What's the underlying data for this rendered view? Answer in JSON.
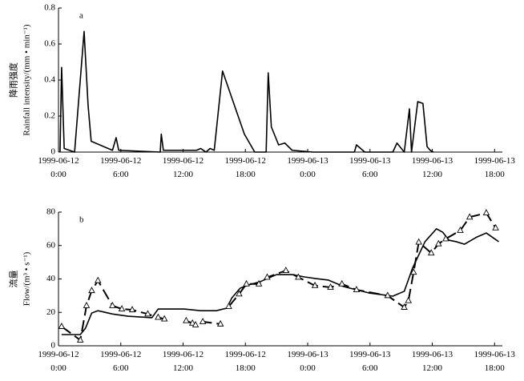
{
  "chart_data": [
    {
      "type": "line",
      "panel_label": "a",
      "ylabel": [
        "降雨强度",
        "Rainfall intensity/(mm • min⁻¹)"
      ],
      "xlim": [
        "1999-06-12 00:00",
        "1999-06-13 18:45"
      ],
      "xticks": [
        {
          "value": "1999-06-12 00:00",
          "label": [
            "1999-06-12",
            "0:00"
          ]
        },
        {
          "value": "1999-06-12 06:00",
          "label": [
            "1999-06-12",
            "6:00"
          ]
        },
        {
          "value": "1999-06-12 12:00",
          "label": [
            "1999-06-12",
            "12:00"
          ]
        },
        {
          "value": "1999-06-12 18:00",
          "label": [
            "1999-06-12",
            "18:00"
          ]
        },
        {
          "value": "1999-06-13 00:00",
          "label": [
            "1999-06-13",
            "0:00"
          ]
        },
        {
          "value": "1999-06-13 06:00",
          "label": [
            "1999-06-13",
            "6:00"
          ]
        },
        {
          "value": "1999-06-13 12:00",
          "label": [
            "1999-06-13",
            "12:00"
          ]
        },
        {
          "value": "1999-06-13 18:00",
          "label": [
            "1999-06-13",
            "18:00"
          ]
        }
      ],
      "ylim": [
        0,
        0.8
      ],
      "yticks": [
        0,
        0.2,
        0.4,
        0.6,
        0.8
      ],
      "series": [
        {
          "color": "#000000",
          "dash": false,
          "marker": null,
          "x": [
            "1999-06-12 00:09",
            "1999-06-12 00:18",
            "1999-06-12 00:33",
            "1999-06-12 01:33",
            "1999-06-12 02:28",
            "1999-06-12 02:51",
            "1999-06-12 03:09",
            "1999-06-12 05:12",
            "1999-06-12 05:33",
            "1999-06-12 05:48",
            "1999-06-12 09:48",
            "1999-06-12 09:54",
            "1999-06-12 10:06",
            "1999-06-12 13:18",
            "1999-06-12 13:42",
            "1999-06-12 14:12",
            "1999-06-12 14:36",
            "1999-06-12 15:00",
            "1999-06-12 15:48",
            "1999-06-12 17:54",
            "1999-06-12 18:54",
            "1999-06-12 20:00",
            "1999-06-12 20:12",
            "1999-06-12 20:30",
            "1999-06-12 21:12",
            "1999-06-12 21:48",
            "1999-06-12 22:30",
            "1999-06-13 00:30",
            "1999-06-13 04:30",
            "1999-06-13 04:42",
            "1999-06-13 05:30",
            "1999-06-13 08:12",
            "1999-06-13 08:36",
            "1999-06-13 09:18",
            "1999-06-13 09:48",
            "1999-06-13 10:00",
            "1999-06-13 10:36",
            "1999-06-13 11:06",
            "1999-06-13 11:30",
            "1999-06-13 11:48",
            "1999-06-13 12:06"
          ],
          "values": [
            0,
            0.47,
            0.02,
            0,
            0.67,
            0.26,
            0.06,
            0.01,
            0.08,
            0.01,
            0,
            0.1,
            0.01,
            0.01,
            0.02,
            0,
            0.02,
            0.01,
            0.45,
            0.1,
            0,
            0,
            0.44,
            0.14,
            0.04,
            0.05,
            0.01,
            0,
            0,
            0.04,
            0,
            0,
            0.05,
            0,
            0.24,
            0,
            0.28,
            0.27,
            0.03,
            0.01,
            0
          ]
        }
      ]
    },
    {
      "type": "line",
      "panel_label": "b",
      "ylabel": [
        "流量",
        "Flow/(m³ • s⁻¹)"
      ],
      "xlim": [
        "1999-06-12 00:00",
        "1999-06-13 18:45"
      ],
      "xticks": [
        {
          "value": "1999-06-12 00:00",
          "label": [
            "1999-06-12",
            "0:00"
          ]
        },
        {
          "value": "1999-06-12 06:00",
          "label": [
            "1999-06-12",
            "6:00"
          ]
        },
        {
          "value": "1999-06-12 12:00",
          "label": [
            "1999-06-12",
            "12:00"
          ]
        },
        {
          "value": "1999-06-12 18:00",
          "label": [
            "1999-06-12",
            "18:00"
          ]
        },
        {
          "value": "1999-06-13 00:00",
          "label": [
            "1999-06-13",
            "0:00"
          ]
        },
        {
          "value": "1999-06-13 06:00",
          "label": [
            "1999-06-13",
            "6:00"
          ]
        },
        {
          "value": "1999-06-13 12:00",
          "label": [
            "1999-06-13",
            "12:00"
          ]
        },
        {
          "value": "1999-06-13 18:00",
          "label": [
            "1999-06-13",
            "18:00"
          ]
        }
      ],
      "ylim": [
        0,
        80
      ],
      "yticks": [
        0,
        20,
        40,
        60,
        80
      ],
      "series": [
        {
          "color": "#000000",
          "dash": false,
          "marker": null,
          "x": [
            "1999-06-12 00:18",
            "1999-06-12 02:06",
            "1999-06-12 02:36",
            "1999-06-12 03:12",
            "1999-06-12 03:48",
            "1999-06-12 05:12",
            "1999-06-12 06:42",
            "1999-06-12 09:00",
            "1999-06-12 09:36",
            "1999-06-12 12:06",
            "1999-06-12 13:42",
            "1999-06-12 15:12",
            "1999-06-12 16:12",
            "1999-06-12 16:42",
            "1999-06-12 17:30",
            "1999-06-12 18:18",
            "1999-06-12 19:24",
            "1999-06-12 21:00",
            "1999-06-12 22:30",
            "1999-06-12 23:42",
            "1999-06-13 00:48",
            "1999-06-13 02:00",
            "1999-06-13 03:30",
            "1999-06-13 05:54",
            "1999-06-13 08:12",
            "1999-06-13 09:18",
            "1999-06-13 10:06",
            "1999-06-13 11:18",
            "1999-06-13 12:24",
            "1999-06-13 13:00",
            "1999-06-13 13:36",
            "1999-06-13 14:18",
            "1999-06-13 15:06",
            "1999-06-13 16:18",
            "1999-06-13 17:12",
            "1999-06-13 18:24"
          ],
          "values": [
            6.7,
            6.7,
            10.5,
            19.6,
            21,
            19,
            17.7,
            16.8,
            22,
            22,
            21,
            21,
            22.5,
            28.7,
            34.5,
            36.4,
            38.3,
            42.6,
            42.6,
            41.2,
            40.2,
            39.3,
            35.4,
            31.6,
            29.7,
            32.6,
            46.5,
            62.3,
            70,
            68,
            63.2,
            62.3,
            60.8,
            65.1,
            67.5,
            62.3
          ]
        },
        {
          "color": "#000000",
          "dash": true,
          "marker": "triangle",
          "x": [
            "1999-06-12 00:18",
            "1999-06-12 02:06",
            "1999-06-12 02:42",
            "1999-06-12 03:12",
            "1999-06-12 03:48",
            "1999-06-12 05:12",
            "1999-06-12 06:06",
            "1999-06-12 07:06",
            "1999-06-12 08:36",
            "1999-06-12 09:36",
            "1999-06-12 10:12",
            "1999-06-12 11:15",
            "1999-06-12 12:18",
            "1999-06-12 12:54",
            "1999-06-12 13:12",
            "1999-06-12 13:54",
            "1999-06-12 15:36",
            "1999-06-12 16:00",
            "1999-06-12 16:24",
            "1999-06-12 17:24",
            "1999-06-12 18:06",
            "1999-06-12 19:18",
            "1999-06-12 20:06",
            "1999-06-12 21:54",
            "1999-06-12 23:06",
            "1999-06-13 00:42",
            "1999-06-13 02:12",
            "1999-06-13 03:18",
            "1999-06-13 04:42",
            "1999-06-13 07:42",
            "1999-06-13 09:18",
            "1999-06-13 09:42",
            "1999-06-13 10:12",
            "1999-06-13 10:42",
            "1999-06-13 11:54",
            "1999-06-13 12:36",
            "1999-06-13 13:18",
            "1999-06-13 14:42",
            "1999-06-13 15:36",
            "1999-06-13 17:12",
            "1999-06-13 18:06"
          ],
          "values": [
            11.5,
            3.4,
            24,
            33,
            39,
            24,
            22,
            21.5,
            19,
            17,
            16,
            null,
            15,
            13.5,
            12.5,
            14.4,
            13,
            null,
            23.5,
            31,
            37,
            37,
            41,
            45,
            41,
            36,
            35,
            37,
            33.5,
            30,
            23,
            27,
            44,
            62,
            55.5,
            61,
            64,
            69,
            77,
            79.5,
            70.5
          ]
        }
      ]
    }
  ]
}
